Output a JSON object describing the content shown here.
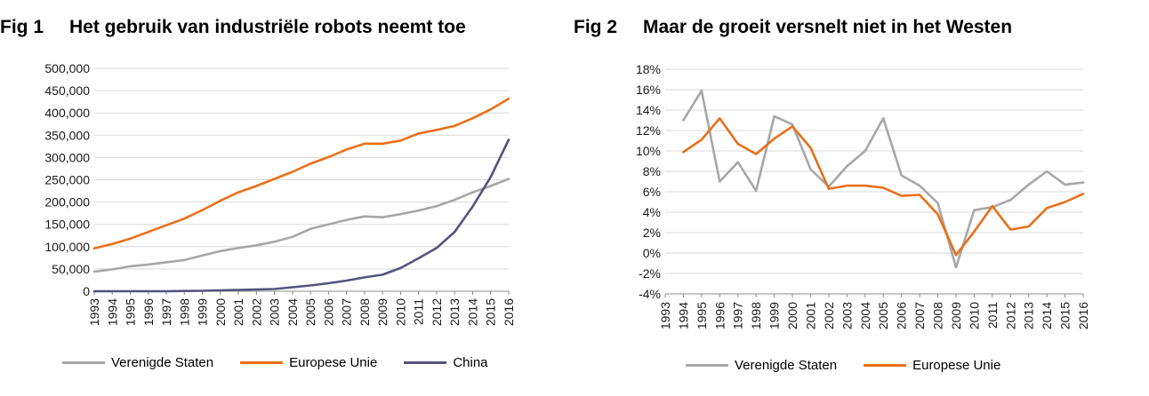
{
  "colors": {
    "us": "#a7a7a7",
    "eu": "#e8701a",
    "china": "#54537f"
  },
  "chart_data": [
    {
      "type": "line",
      "fig_label": "Fig 1",
      "title": "Het gebruik van industriële robots neemt toe",
      "x": [
        1993,
        1994,
        1995,
        1996,
        1997,
        1998,
        1999,
        2000,
        2001,
        2002,
        2003,
        2004,
        2005,
        2006,
        2007,
        2008,
        2009,
        2010,
        2011,
        2012,
        2013,
        2014,
        2015,
        2016
      ],
      "ylim": [
        0,
        500000
      ],
      "yticks": [
        "0",
        "50,000",
        "100,000",
        "150,000",
        "200,000",
        "250,000",
        "300,000",
        "350,000",
        "400,000",
        "450,000",
        "500,000"
      ],
      "grid": true,
      "legend_position": "bottom",
      "series": [
        {
          "name": "Verenigde Staten",
          "color_key": "us",
          "values": [
            44000,
            49000,
            56000,
            60000,
            65000,
            70000,
            80000,
            90000,
            97000,
            103000,
            111000,
            122000,
            140000,
            150000,
            160000,
            168000,
            166000,
            173000,
            181000,
            191000,
            205000,
            222000,
            236000,
            252000
          ]
        },
        {
          "name": "Europese Unie",
          "color_key": "eu",
          "values": [
            96000,
            106000,
            118000,
            133000,
            148000,
            163000,
            182000,
            203000,
            222000,
            236000,
            252000,
            268000,
            286000,
            301000,
            318000,
            331000,
            331000,
            338000,
            354000,
            362000,
            371000,
            388000,
            408000,
            432000
          ]
        },
        {
          "name": "China",
          "color_key": "china",
          "values": [
            0,
            0,
            0,
            0,
            0,
            500,
            1000,
            2000,
            3000,
            4000,
            5000,
            9000,
            13000,
            18000,
            24000,
            31000,
            37000,
            52000,
            74000,
            97000,
            133000,
            190000,
            256000,
            340000
          ]
        }
      ]
    },
    {
      "type": "line",
      "fig_label": "Fig 2",
      "title": "Maar de groeit versnelt niet in het Westen",
      "x": [
        1993,
        1994,
        1995,
        1996,
        1997,
        1998,
        1999,
        2000,
        2001,
        2002,
        2003,
        2004,
        2005,
        2006,
        2007,
        2008,
        2009,
        2010,
        2011,
        2012,
        2013,
        2014,
        2015,
        2016
      ],
      "ylim": [
        -4,
        18
      ],
      "yticks": [
        "-4%",
        "-2%",
        "0%",
        "2%",
        "4%",
        "6%",
        "8%",
        "10%",
        "12%",
        "14%",
        "16%",
        "18%"
      ],
      "grid": true,
      "legend_position": "bottom",
      "series": [
        {
          "name": "Verenigde Staten",
          "color_key": "us",
          "values": [
            null,
            13.0,
            15.9,
            7.0,
            8.9,
            6.1,
            13.4,
            12.6,
            8.2,
            6.5,
            8.5,
            10.0,
            13.2,
            7.6,
            6.6,
            4.9,
            -1.4,
            4.2,
            4.5,
            5.2,
            6.7,
            8.0,
            6.7,
            6.9
          ]
        },
        {
          "name": "Europese Unie",
          "color_key": "eu",
          "values": [
            null,
            9.9,
            11.1,
            13.2,
            10.7,
            9.7,
            11.2,
            12.4,
            10.3,
            6.3,
            6.6,
            6.6,
            6.4,
            5.6,
            5.7,
            3.8,
            -0.2,
            2.1,
            4.6,
            2.3,
            2.6,
            4.4,
            5.0,
            5.8
          ]
        }
      ]
    }
  ]
}
